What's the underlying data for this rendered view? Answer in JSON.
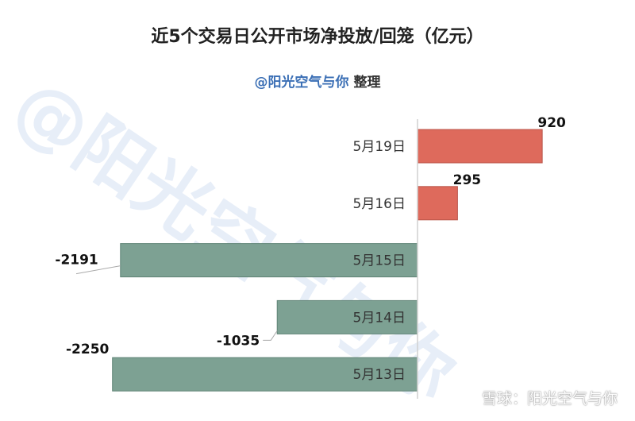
{
  "header": {
    "title": "近5个交易日公开市场净投放/回笼（亿元）",
    "subtitle_handle": "@阳光空气与你",
    "subtitle_suffix": "整理"
  },
  "watermark": "@阳光空气与你",
  "footer_watermark": "雪球：阳光空气与你",
  "colors": {
    "positive": "#de6a5c",
    "negative": "#7da193",
    "axis": "#d0d0d0"
  },
  "chart_data": {
    "type": "bar",
    "orientation": "horizontal",
    "categories": [
      "5月19日",
      "5月16日",
      "5月15日",
      "5月14日",
      "5月13日"
    ],
    "values": [
      920,
      295,
      -2191,
      -1035,
      -2250
    ],
    "title": "近5个交易日公开市场净投放/回笼（亿元）",
    "subtitle": "@阳光空气与你 整理",
    "xlim": [
      -2250,
      920
    ],
    "grid": false,
    "legend": "none"
  }
}
